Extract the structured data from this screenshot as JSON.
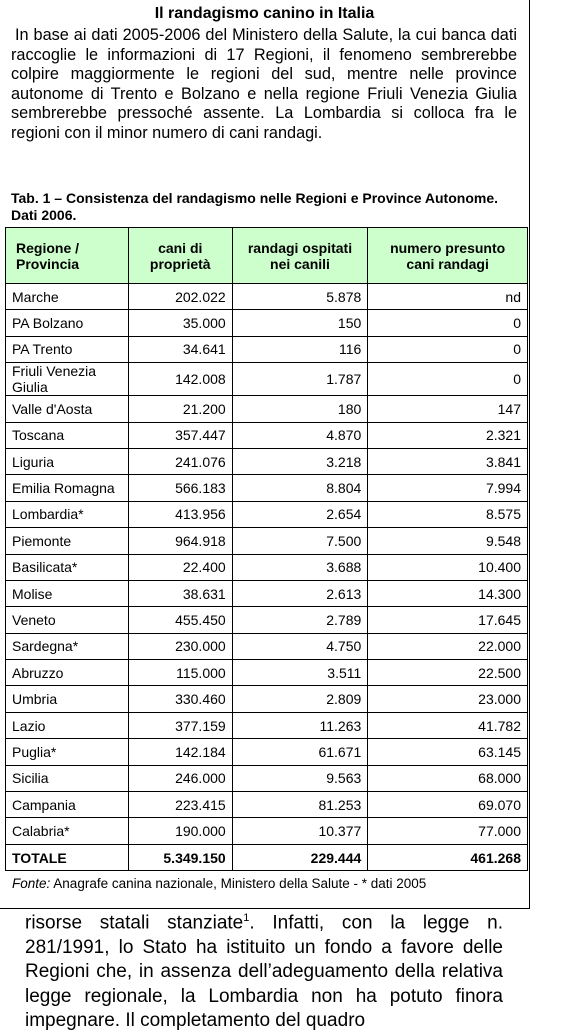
{
  "title": "Il randagismo canino in Italia",
  "intro": "In base ai dati 2005-2006 del Ministero della Salute, la cui banca dati raccoglie le informazioni di 17 Regioni, il fenomeno sembrerebbe colpire maggiormente le regioni del sud, mentre nelle province autonome di Trento e Bolzano e nella regione Friuli Venezia Giulia sembrerebbe pressoché assente. La Lombardia si colloca fra le regioni con il minor numero di cani randagi.",
  "table": {
    "caption": "Tab. 1 – Consistenza del randagismo nelle Regioni e Province Autonome. Dati 2006.",
    "headers": [
      "Regione / Provincia",
      "cani di proprietà",
      "randagi ospitati nei canili",
      "numero presunto cani randagi"
    ],
    "rows": [
      [
        "Marche",
        "202.022",
        "5.878",
        "nd"
      ],
      [
        "PA Bolzano",
        "35.000",
        "150",
        "0"
      ],
      [
        "PA Trento",
        "34.641",
        "116",
        "0"
      ],
      [
        "Friuli Venezia Giulia",
        "142.008",
        "1.787",
        "0"
      ],
      [
        "Valle d'Aosta",
        "21.200",
        "180",
        "147"
      ],
      [
        "Toscana",
        "357.447",
        "4.870",
        "2.321"
      ],
      [
        "Liguria",
        "241.076",
        "3.218",
        "3.841"
      ],
      [
        "Emilia Romagna",
        "566.183",
        "8.804",
        "7.994"
      ],
      [
        "Lombardia*",
        "413.956",
        "2.654",
        "8.575"
      ],
      [
        "Piemonte",
        "964.918",
        "7.500",
        "9.548"
      ],
      [
        "Basilicata*",
        "22.400",
        "3.688",
        "10.400"
      ],
      [
        "Molise",
        "38.631",
        "2.613",
        "14.300"
      ],
      [
        "Veneto",
        "455.450",
        "2.789",
        "17.645"
      ],
      [
        "Sardegna*",
        "230.000",
        "4.750",
        "22.000"
      ],
      [
        "Abruzzo",
        "115.000",
        "3.511",
        "22.500"
      ],
      [
        "Umbria",
        "330.460",
        "2.809",
        "23.000"
      ],
      [
        "Lazio",
        "377.159",
        "11.263",
        "41.782"
      ],
      [
        "Puglia*",
        "142.184",
        "61.671",
        "63.145"
      ],
      [
        "Sicilia",
        "246.000",
        "9.563",
        "68.000"
      ],
      [
        "Campania",
        "223.415",
        "81.253",
        "69.070"
      ],
      [
        "Calabria*",
        "190.000",
        "10.377",
        "77.000"
      ]
    ],
    "total": [
      "TOTALE",
      "5.349.150",
      "229.444",
      "461.268"
    ]
  },
  "source": {
    "label": "Fonte:",
    "text": "Anagrafe canina nazionale, Ministero della Salute - * dati 2005"
  },
  "body": {
    "before": "risorse statali stanziate",
    "footnote": "1",
    "after": ". Infatti, con la legge n. 281/1991, lo Stato ha istituito un fondo a favore delle Regioni che, in assenza dell’adeguamento della relativa legge regionale, la Lombardia non ha potuto finora impegnare. Il completamento del quadro"
  }
}
